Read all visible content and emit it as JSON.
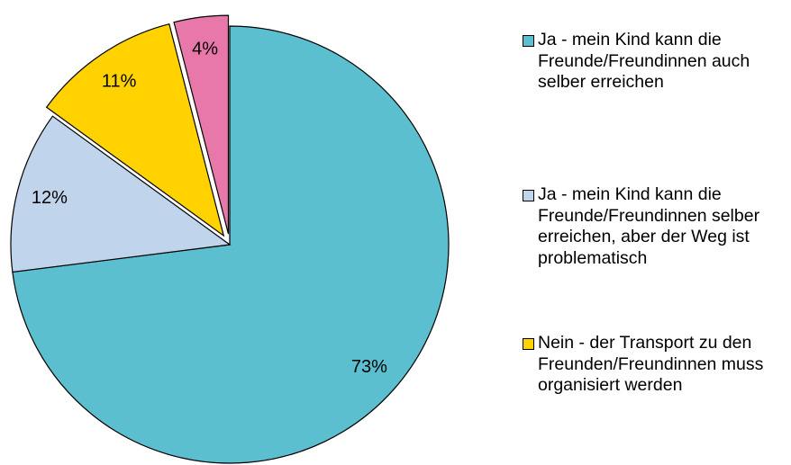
{
  "chart_data": {
    "type": "pie",
    "categories": [
      "Ja - mein Kind kann die Freunde/Freundinnen auch selber erreichen",
      "Ja - mein Kind kann die Freunde/Freundinnen selber erreichen, aber der Weg ist problematisch",
      "Nein - der Transport zu den Freunden/Freundinnen muss organisiert werden",
      null
    ],
    "values": [
      73,
      12,
      11,
      4
    ],
    "value_labels": [
      "73%",
      "12%",
      "11%",
      "4%"
    ],
    "colors": [
      "#5bbfcf",
      "#c0d4ec",
      "#ffd200",
      "#e878aa"
    ],
    "explode": [
      false,
      false,
      true,
      true
    ],
    "legend": "right"
  }
}
